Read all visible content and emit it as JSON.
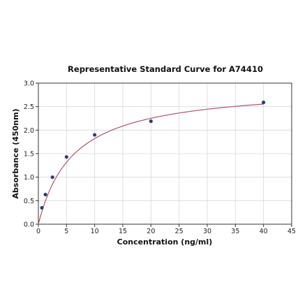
{
  "chart_data": {
    "type": "scatter",
    "title": "Representative Standard Curve for A74410",
    "xlabel": "Concentration (ng/ml)",
    "ylabel": "Absorbance (450nm)",
    "xlim": [
      0,
      45
    ],
    "ylim": [
      0,
      3.0
    ],
    "xticks": [
      "0",
      "5",
      "10",
      "15",
      "20",
      "25",
      "30",
      "35",
      "40",
      "45"
    ],
    "yticks": [
      "0.0",
      "0.5",
      "1.0",
      "1.5",
      "2.0",
      "2.5",
      "3.0"
    ],
    "grid": true,
    "points": [
      {
        "x": 0.625,
        "y": 0.35
      },
      {
        "x": 1.25,
        "y": 0.63
      },
      {
        "x": 2.5,
        "y": 1.0
      },
      {
        "x": 5,
        "y": 1.43
      },
      {
        "x": 10,
        "y": 1.9
      },
      {
        "x": 20,
        "y": 2.19
      },
      {
        "x": 40,
        "y": 2.59
      }
    ],
    "point_color": "#2f3e6e",
    "curve_color": "#b5536b",
    "fit": {
      "model": "hyperbolic",
      "bmax": 2.95,
      "kd": 6.2
    }
  }
}
